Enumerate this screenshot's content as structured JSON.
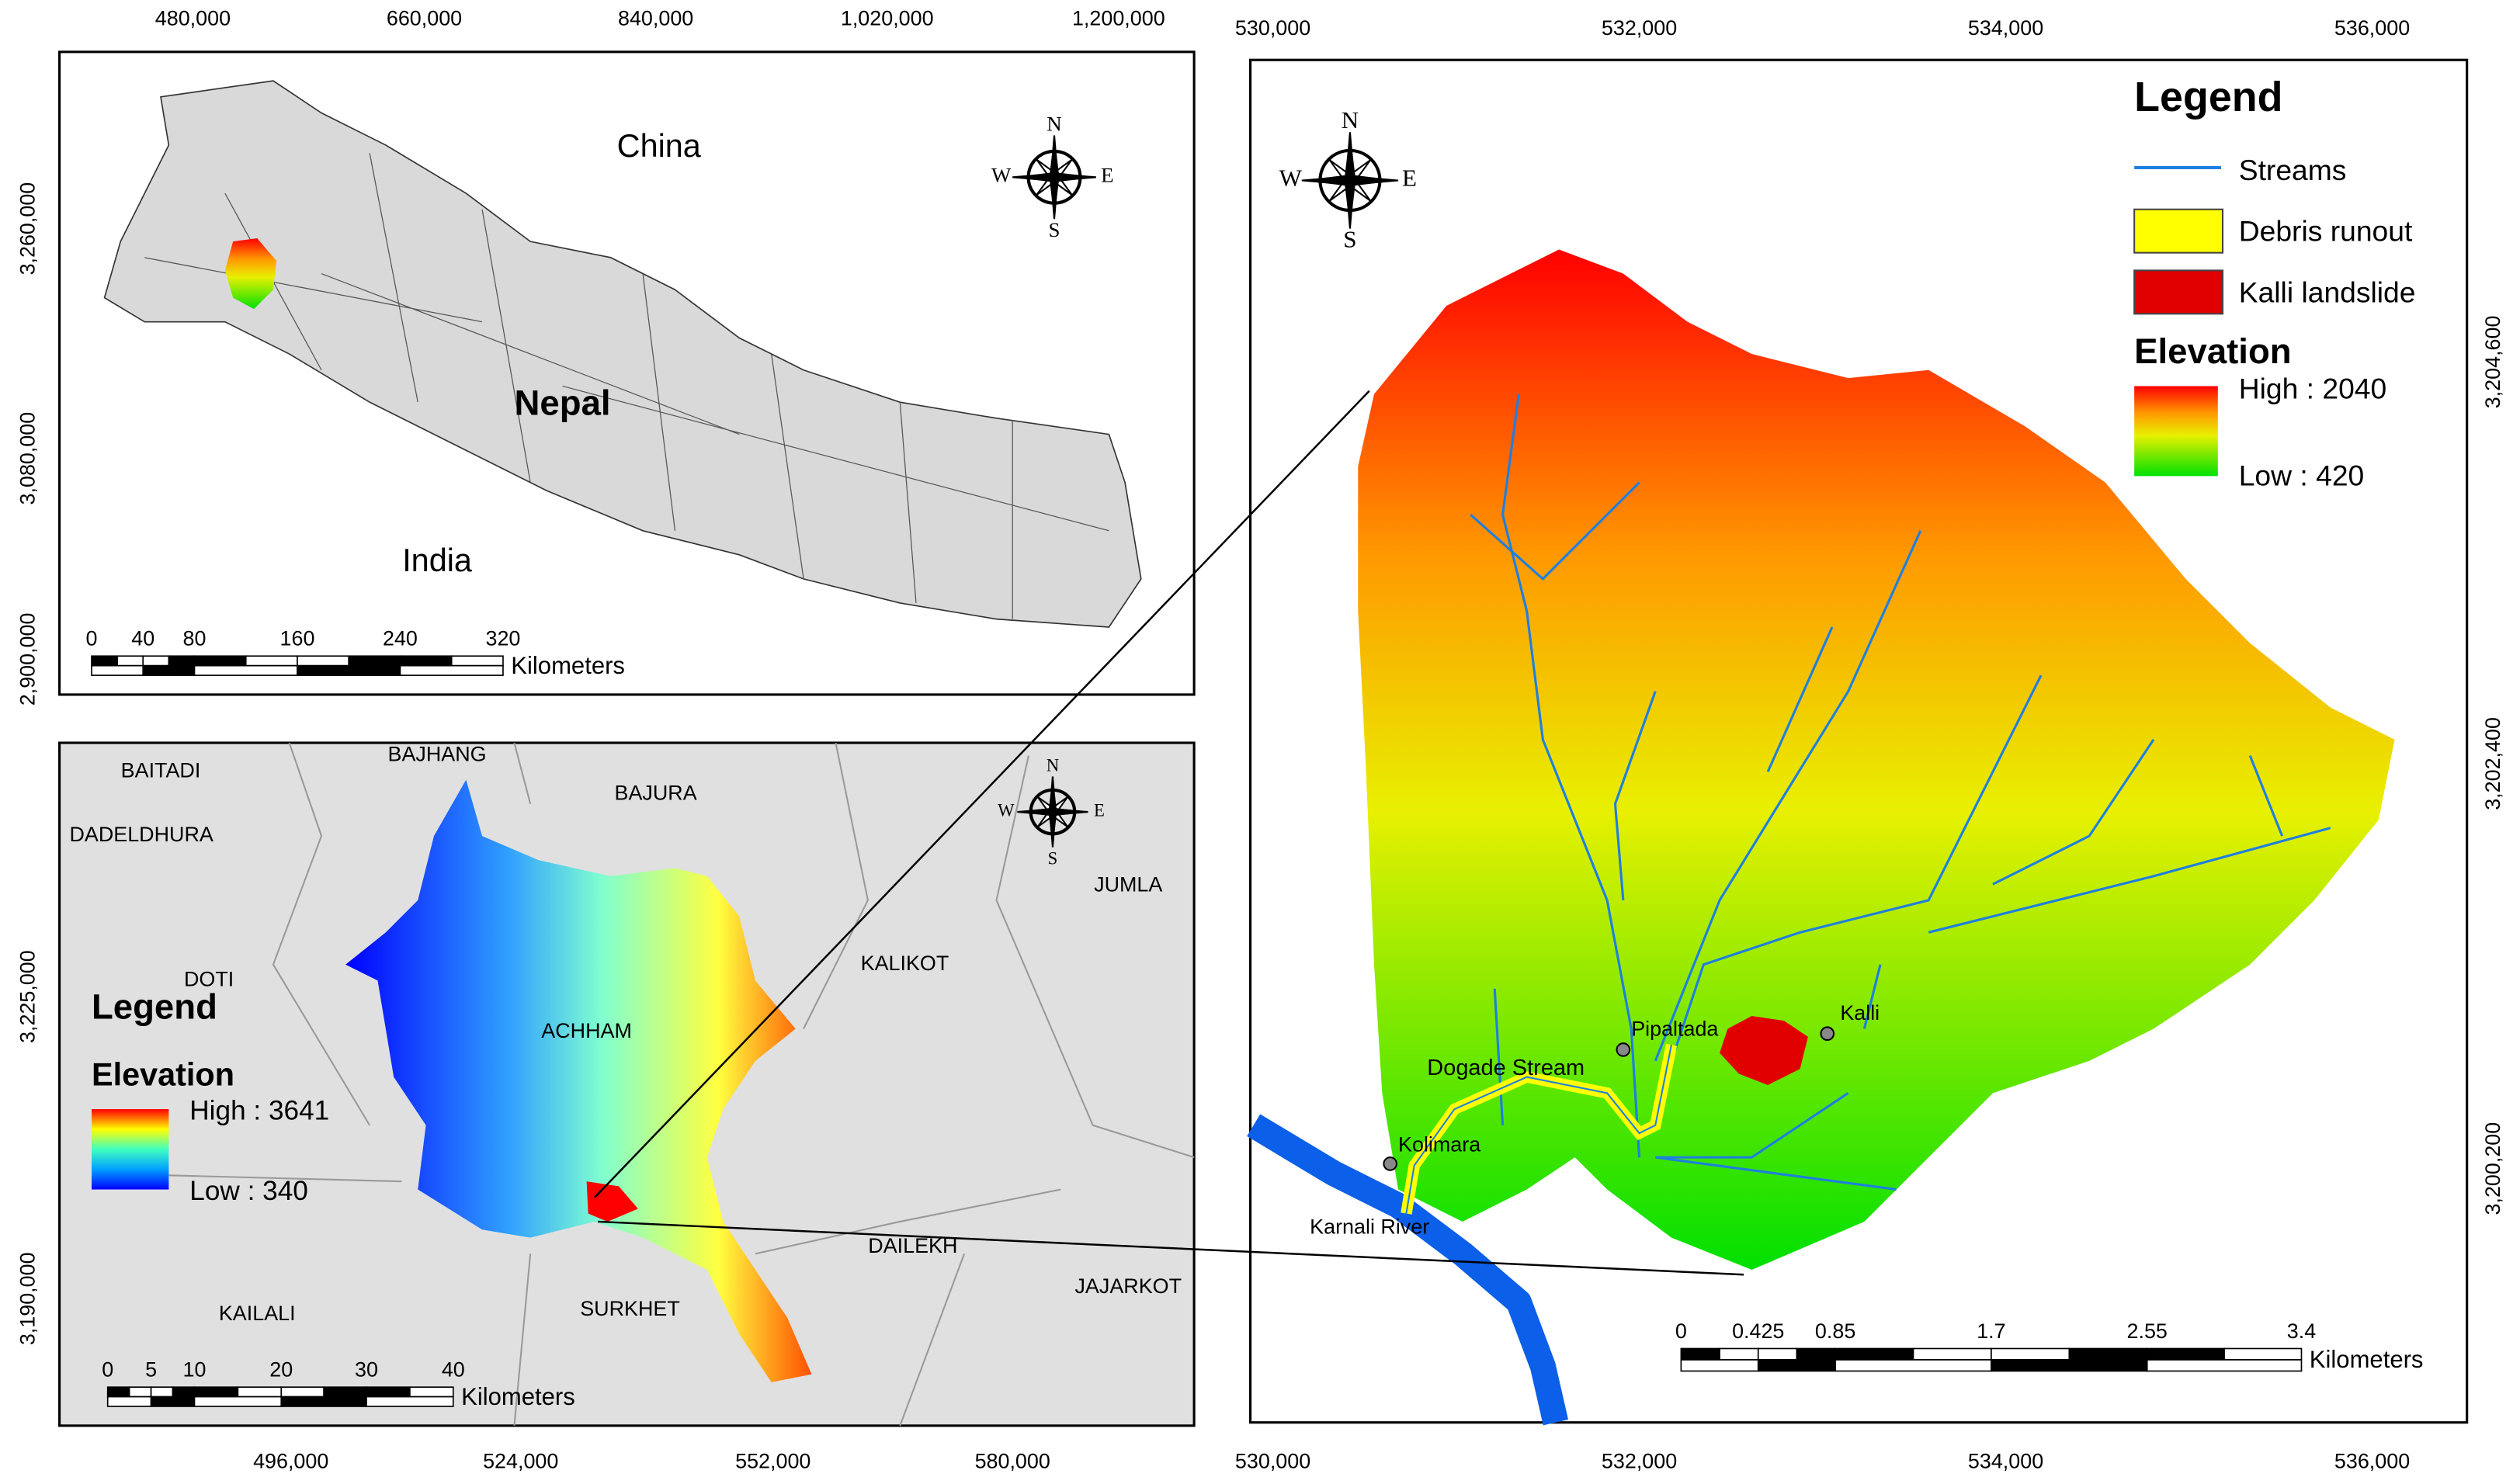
{
  "compass": {
    "n": "N",
    "e": "E",
    "s": "S",
    "w": "W"
  },
  "map_a": {
    "x_ticks": [
      "480,000",
      "660,000",
      "840,000",
      "1,020,000",
      "1,200,000"
    ],
    "y_ticks": [
      "3,260,000",
      "3,080,000",
      "2,900,000"
    ],
    "labels": [
      "China",
      "Nepal",
      "India"
    ],
    "scale_bar": {
      "ticks": [
        "0",
        "40",
        "80",
        "160",
        "240",
        "320"
      ],
      "unit": "Kilometers"
    }
  },
  "map_b": {
    "x_ticks": [
      "496,000",
      "524,000",
      "552,000",
      "580,000"
    ],
    "y_ticks": [
      "3,225,000",
      "3,190,000"
    ],
    "districts": [
      "BAITADI",
      "BAJHANG",
      "BAJURA",
      "DADELDHURA",
      "DOTI",
      "KALIKOT",
      "JUMLA",
      "ACHHAM",
      "DAILEKH",
      "KAILALI",
      "SURKHET",
      "JAJARKOT"
    ],
    "legend": {
      "title": "Legend",
      "subtitle": "Elevation",
      "high": "High : 3641",
      "low": "Low : 340"
    },
    "scale_bar": {
      "ticks": [
        "0",
        "5",
        "10",
        "20",
        "30",
        "40"
      ],
      "unit": "Kilometers"
    }
  },
  "map_c": {
    "x_ticks": [
      "530,000",
      "532,000",
      "534,000",
      "536,000"
    ],
    "y_ticks": [
      "3,204,600",
      "3,202,400",
      "3,200,200"
    ],
    "places": [
      "Pipaltada",
      "Kalli",
      "Dogade Stream",
      "Kolimara",
      "Karnali River"
    ],
    "legend": {
      "title": "Legend",
      "items": [
        "Streams",
        "Debris runout",
        "Kalli landslide"
      ],
      "subtitle": "Elevation",
      "high": "High : 2040",
      "low": "Low : 420"
    },
    "scale_bar": {
      "ticks": [
        "0",
        "0.425",
        "0.85",
        "1.7",
        "2.55",
        "3.4"
      ],
      "unit": "Kilometers"
    }
  }
}
